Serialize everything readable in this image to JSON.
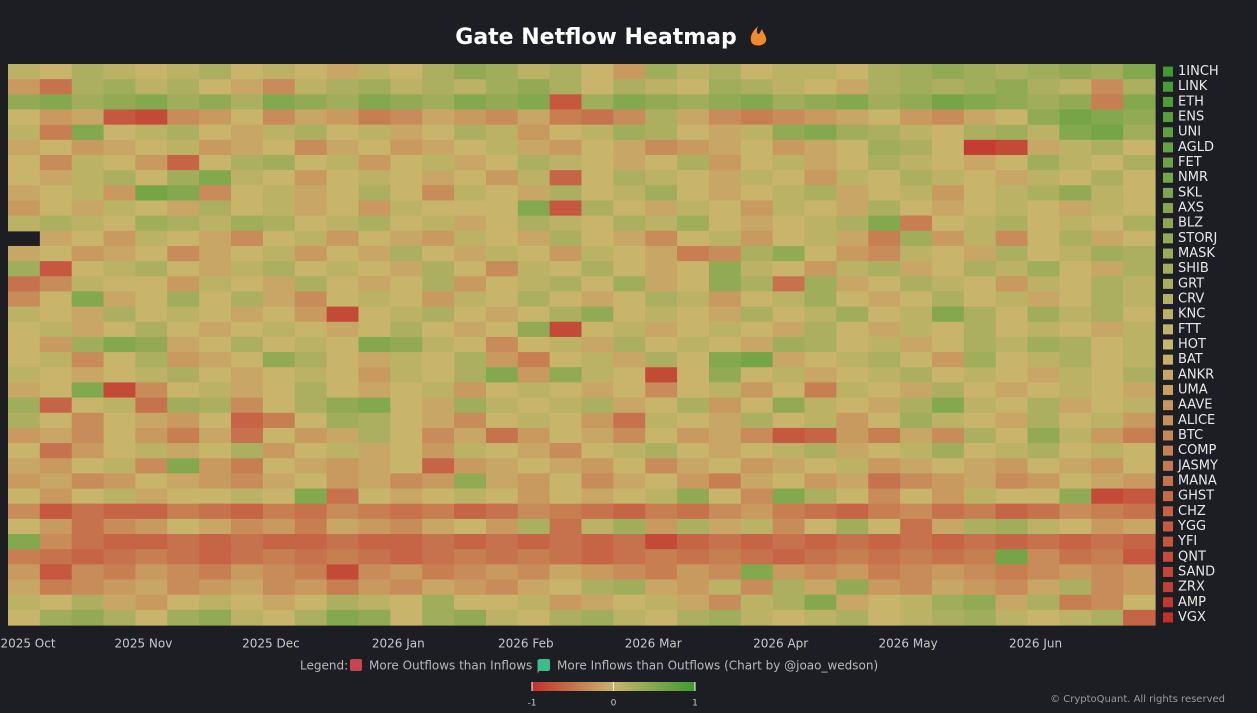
{
  "chart_data": {
    "type": "heatmap",
    "title": "Gate Netflow Heatmap",
    "categories": [
      "2025 Oct",
      null,
      null,
      null,
      "2025 Nov",
      null,
      null,
      null,
      "2025 Dec",
      null,
      null,
      null,
      "2026 Jan",
      null,
      null,
      null,
      "2026 Feb",
      null,
      null,
      null,
      "2026 Mar",
      null,
      null,
      null,
      "2026 Apr",
      null,
      null,
      null,
      "2026 May",
      null,
      null,
      null,
      "2026 Jun",
      null,
      null,
      null
    ],
    "rows": [
      "1INCH",
      "LINK",
      "ETH",
      "ENS",
      "UNI",
      "AGLD",
      "FET",
      "NMR",
      "SKL",
      "AXS",
      "BLZ",
      "STORJ",
      "MASK",
      "SHIB",
      "GRT",
      "CRV",
      "KNC",
      "FTT",
      "HOT",
      "BAT",
      "ANKR",
      "UMA",
      "AAVE",
      "ALICE",
      "BTC",
      "COMP",
      "JASMY",
      "MANA",
      "GHST",
      "CHZ",
      "YGG",
      "YFI",
      "QNT",
      "SAND",
      "ZRX",
      "AMP",
      "VGX"
    ],
    "values": [
      [
        0.1,
        0,
        0.2,
        0.1,
        0,
        0.1,
        0.2,
        0,
        0.1,
        0,
        -0.1,
        0.1,
        0,
        0.2,
        0.4,
        0.3,
        0.1,
        0.2,
        0,
        -0.2,
        0.3,
        0.1,
        0.2,
        0,
        0.1,
        0.1,
        0,
        0.2,
        0.3,
        0.4,
        0.3,
        0.2,
        0.3,
        0.4,
        0.3,
        0.5
      ],
      [
        -0.2,
        -0.5,
        0.2,
        0.3,
        0.1,
        0.2,
        0,
        -0.1,
        -0.3,
        0.1,
        0.2,
        0.3,
        0.1,
        0.2,
        0.1,
        0.3,
        0.4,
        0.2,
        0,
        0.2,
        0.1,
        0,
        0.3,
        0.2,
        0.1,
        0,
        -0.1,
        0.2,
        0.3,
        0.2,
        0.3,
        0.4,
        0.2,
        0.1,
        -0.3,
        0.2
      ],
      [
        0.4,
        0.5,
        0.3,
        0.4,
        0.5,
        0.3,
        0.4,
        0.2,
        0.5,
        0.4,
        0.3,
        0.5,
        0.4,
        0.3,
        0.5,
        0.4,
        0.5,
        -0.7,
        0.3,
        0.5,
        0.4,
        0.3,
        0.4,
        0.5,
        0.3,
        0.4,
        0.5,
        0.3,
        0.4,
        0.6,
        0.5,
        0.4,
        0.3,
        0.4,
        -0.4,
        0.5
      ],
      [
        0,
        -0.2,
        -0.1,
        -0.7,
        -0.8,
        -0.3,
        -0.2,
        0,
        -0.3,
        -0.1,
        -0.2,
        -0.4,
        -0.3,
        -0.1,
        -0.2,
        -0.3,
        -0.1,
        -0.4,
        -0.5,
        -0.3,
        0.2,
        -0.1,
        -0.3,
        -0.4,
        -0.3,
        -0.2,
        -0.1,
        0,
        -0.2,
        -0.3,
        -0.1,
        0,
        0.4,
        0.6,
        0.5,
        0.4
      ],
      [
        0.1,
        -0.4,
        0.5,
        0,
        0.1,
        0.2,
        0,
        -0.1,
        0.1,
        0.2,
        0,
        0.1,
        -0.1,
        0,
        0.2,
        0.1,
        -0.2,
        0,
        0.1,
        0.3,
        0.2,
        0,
        -0.1,
        0.1,
        0.4,
        0.5,
        0.3,
        0.2,
        0.1,
        0,
        0.2,
        0.3,
        0.1,
        0.5,
        0.6,
        0.3
      ],
      [
        -0.1,
        0,
        -0.2,
        -0.1,
        0,
        0.1,
        -0.2,
        -0.1,
        0,
        -0.3,
        -0.1,
        0,
        -0.2,
        -0.1,
        0,
        0.1,
        -0.1,
        -0.2,
        0,
        -0.1,
        -0.3,
        -0.2,
        -0.1,
        0,
        -0.2,
        -0.1,
        0,
        0.3,
        0.2,
        0,
        -0.9,
        -0.8,
        -0.1,
        0.1,
        0.2,
        0
      ],
      [
        0,
        -0.3,
        0.1,
        0,
        -0.2,
        -0.6,
        0,
        0.2,
        0.3,
        0,
        0.1,
        -0.2,
        0,
        0.1,
        -0.1,
        0,
        0.2,
        0.1,
        0,
        -0.1,
        0,
        0.2,
        -0.2,
        0,
        0.1,
        -0.1,
        0,
        0.2,
        0.1,
        0,
        -0.1,
        0,
        0.3,
        0.1,
        0,
        0.2
      ],
      [
        0,
        -0.1,
        0.1,
        0.2,
        0,
        0.3,
        0.5,
        0.1,
        0,
        -0.2,
        0,
        0.1,
        0,
        -0.1,
        0,
        -0.2,
        0.1,
        -0.6,
        0,
        0.2,
        0.1,
        0,
        -0.1,
        0.1,
        0,
        -0.2,
        0.1,
        0,
        0.2,
        0.1,
        0,
        -0.1,
        0.1,
        0,
        0.2,
        0
      ],
      [
        -0.1,
        0,
        0.1,
        -0.2,
        0.6,
        0.5,
        -0.3,
        0,
        0.1,
        -0.1,
        0,
        0.2,
        0,
        -0.3,
        0.1,
        0,
        -0.1,
        0.2,
        0,
        0.1,
        0.3,
        0,
        -0.1,
        0,
        0.1,
        0.2,
        -0.1,
        0,
        0.1,
        -0.2,
        0,
        0.1,
        0.2,
        0.4,
        0.1,
        0
      ],
      [
        -0.2,
        0,
        -0.1,
        0.1,
        0,
        -0.1,
        0.2,
        0,
        0.1,
        -0.1,
        0,
        -0.2,
        0.1,
        0,
        0,
        0,
        0.5,
        -0.7,
        0.2,
        0,
        -0.1,
        0.1,
        0,
        -0.2,
        0.1,
        0,
        -0.1,
        0.2,
        0,
        -0.1,
        0,
        0.1,
        0,
        -0.1,
        0.1,
        0
      ],
      [
        0.1,
        0.2,
        0.1,
        0,
        0.3,
        0.2,
        0.1,
        0.3,
        0.2,
        0,
        0.1,
        0.2,
        0,
        0.1,
        -0.1,
        0,
        0.2,
        0.1,
        0,
        0.2,
        0.1,
        0.3,
        0,
        -0.1,
        0,
        0.1,
        0.2,
        0.5,
        -0.4,
        0,
        0.1,
        0.2,
        0,
        0.1,
        0,
        0.2
      ],
      [
        null,
        -0.1,
        0,
        -0.2,
        0.1,
        0,
        -0.1,
        -0.3,
        0,
        0.1,
        -0.2,
        0,
        -0.1,
        -0.2,
        0.1,
        0,
        -0.1,
        0.2,
        0,
        -0.1,
        -0.3,
        0,
        0.1,
        -0.2,
        0,
        0.1,
        -0.1,
        -0.4,
        0.3,
        -0.2,
        0.1,
        -0.3,
        0,
        0.2,
        -0.1,
        0
      ],
      [
        -0.1,
        0,
        -0.2,
        -0.1,
        0,
        -0.3,
        -0.1,
        0,
        0.1,
        -0.2,
        0,
        -0.1,
        0.2,
        0,
        -0.1,
        0.1,
        0,
        -0.2,
        0.1,
        0,
        -0.1,
        -0.4,
        -0.3,
        0.2,
        0.4,
        0,
        -0.2,
        -0.3,
        0.1,
        0,
        -0.1,
        0.2,
        0,
        0.1,
        0.3,
        0.2
      ],
      [
        0.3,
        -0.7,
        0,
        0.1,
        0.2,
        0,
        -0.1,
        0.1,
        0.2,
        0,
        0.1,
        0,
        -0.1,
        0.2,
        0,
        -0.3,
        0.1,
        0,
        0.2,
        0,
        -0.1,
        0,
        0.4,
        0.1,
        0,
        -0.2,
        0.1,
        0.2,
        -0.1,
        0,
        0.2,
        0.1,
        0.3,
        0,
        -0.1,
        0.2
      ],
      [
        -0.5,
        -0.3,
        0.1,
        0,
        0,
        -0.2,
        0.1,
        0,
        -0.1,
        0.2,
        0,
        -0.1,
        0,
        0.2,
        -0.2,
        0,
        0.1,
        0.2,
        0,
        0.3,
        -0.1,
        0,
        0.4,
        0.2,
        -0.5,
        0.3,
        -0.1,
        0,
        0.2,
        0.1,
        0,
        -0.2,
        0.1,
        0,
        0.2,
        0.1
      ],
      [
        -0.3,
        0,
        0.5,
        -0.1,
        0,
        0.3,
        0,
        0.2,
        -0.1,
        -0.3,
        0,
        0.1,
        0,
        -0.2,
        0.1,
        0,
        0.2,
        0,
        -0.1,
        0,
        0.2,
        0.1,
        -0.2,
        0,
        0.1,
        0.3,
        0,
        -0.1,
        0,
        0.2,
        0,
        0.1,
        -0.1,
        0,
        0.2,
        0.1
      ],
      [
        0.1,
        0,
        -0.1,
        0.2,
        0,
        0.1,
        0,
        -0.1,
        0,
        -0.2,
        -0.8,
        0,
        0.1,
        0.2,
        0,
        -0.1,
        0,
        0.2,
        0.4,
        0,
        0.1,
        0,
        -0.1,
        0.2,
        0,
        0.1,
        0.3,
        0,
        0.1,
        0.5,
        0.2,
        0,
        0.3,
        0.1,
        0.2,
        0
      ],
      [
        0,
        0.1,
        -0.1,
        0,
        0.2,
        0,
        -0.1,
        0,
        0.1,
        0,
        -0.1,
        0,
        0.2,
        0,
        -0.1,
        0,
        0.4,
        -0.8,
        0,
        0.1,
        -0.1,
        0,
        0.1,
        0,
        -0.1,
        0.2,
        0,
        -0.1,
        0.1,
        0,
        0.2,
        0,
        0.1,
        0,
        -0.1,
        0.1
      ],
      [
        0,
        -0.2,
        0.3,
        0.5,
        0.4,
        -0.1,
        0,
        0.2,
        0,
        0.1,
        0,
        0.5,
        0.4,
        0.1,
        0,
        -0.3,
        0,
        0.1,
        -0.1,
        0.2,
        0,
        0.1,
        0,
        -0.1,
        0.3,
        0.2,
        0,
        0.1,
        -0.1,
        0,
        0.2,
        0.1,
        0.3,
        0.2,
        0,
        0.1
      ],
      [
        0,
        0.1,
        -0.3,
        0,
        0.2,
        -0.2,
        -0.1,
        0,
        0.4,
        0.2,
        0,
        -0.1,
        0.1,
        0,
        0.2,
        -0.2,
        -0.4,
        0,
        0.1,
        -0.1,
        0.2,
        0,
        0.5,
        0.6,
        -0.1,
        0,
        0.1,
        0.2,
        0,
        -0.2,
        0.3,
        0,
        0.1,
        0.2,
        0,
        0.1
      ],
      [
        0.1,
        0,
        -0.1,
        0,
        0.1,
        0.2,
        0,
        -0.1,
        0,
        0.1,
        0,
        -0.2,
        0.1,
        0,
        0.2,
        0.5,
        -0.2,
        0.4,
        0.1,
        0,
        -0.8,
        0,
        0.4,
        0,
        0.1,
        -0.1,
        0,
        0.1,
        0.2,
        0,
        0.1,
        0,
        -0.1,
        0.1,
        0,
        0.2
      ],
      [
        -0.1,
        0,
        0.5,
        -0.8,
        -0.3,
        0,
        0.1,
        -0.1,
        0,
        0.2,
        0,
        -0.1,
        0,
        0.1,
        -0.2,
        0,
        0.1,
        0,
        -0.1,
        0,
        -0.3,
        0,
        0.1,
        -0.2,
        0,
        -0.4,
        0.1,
        0,
        -0.1,
        0.2,
        0,
        -0.1,
        0,
        0.1,
        0,
        -0.1
      ],
      [
        0.3,
        -0.6,
        0,
        0.1,
        -0.5,
        0.3,
        0.2,
        -0.3,
        0,
        0.2,
        0.4,
        0.5,
        0,
        -0.1,
        0.3,
        0.1,
        0,
        0.1,
        0.2,
        -0.1,
        0,
        0.2,
        -0.2,
        0,
        0.4,
        0.1,
        0,
        -0.1,
        0.2,
        0.5,
        0.1,
        0,
        0.2,
        -0.1,
        0,
        0.1
      ],
      [
        0.2,
        0,
        -0.3,
        0,
        -0.1,
        -0.2,
        0,
        -0.6,
        -0.4,
        0,
        0.3,
        0.2,
        0,
        -0.1,
        -0.3,
        0,
        0.1,
        0,
        -0.2,
        -0.5,
        0.1,
        0,
        -0.1,
        0.2,
        0,
        0.1,
        -0.2,
        0,
        0.3,
        0.1,
        0,
        -0.1,
        0.2,
        0,
        0.1,
        -0.2
      ],
      [
        -0.2,
        -0.1,
        -0.3,
        0,
        -0.2,
        -0.4,
        -0.1,
        -0.5,
        0,
        -0.2,
        -0.1,
        0.2,
        0,
        -0.3,
        -0.1,
        -0.5,
        -0.2,
        0,
        -0.1,
        -0.3,
        0,
        -0.2,
        -0.1,
        -0.3,
        -0.7,
        -0.6,
        -0.2,
        -0.4,
        -0.1,
        -0.3,
        0.2,
        0,
        0.4,
        0.1,
        -0.2,
        -0.4
      ],
      [
        0,
        -0.5,
        -0.2,
        0,
        0.1,
        -0.1,
        0,
        0.2,
        -0.2,
        0,
        0.1,
        -0.1,
        0,
        -0.2,
        0.1,
        0,
        -0.1,
        -0.3,
        0,
        0.1,
        0.2,
        0,
        -0.1,
        0,
        0.1,
        0.2,
        -0.1,
        0,
        0.1,
        0.3,
        0,
        0.1,
        0.2,
        0,
        0.1,
        0
      ],
      [
        -0.1,
        -0.2,
        0,
        0.1,
        -0.3,
        0.5,
        -0.2,
        -0.4,
        0,
        -0.1,
        -0.2,
        -0.1,
        0,
        -0.6,
        -0.2,
        -0.1,
        0,
        -0.1,
        -0.2,
        0,
        -0.3,
        -0.1,
        0,
        -0.2,
        -0.1,
        0,
        0.1,
        -0.2,
        -0.1,
        0,
        -0.1,
        -0.2,
        0,
        -0.1,
        -0.2,
        0
      ],
      [
        -0.2,
        -0.1,
        -0.3,
        -0.2,
        0,
        -0.1,
        -0.2,
        -0.3,
        -0.1,
        0,
        -0.2,
        -0.1,
        -0.3,
        -0.2,
        0.4,
        -0.1,
        -0.2,
        0,
        -0.3,
        -0.1,
        0,
        -0.2,
        -0.4,
        -0.1,
        0,
        -0.2,
        -0.1,
        -0.5,
        -0.3,
        -0.2,
        -0.1,
        -0.3,
        -0.2,
        0,
        -0.1,
        -0.2
      ],
      [
        0,
        -0.2,
        0,
        0.1,
        -0.1,
        0,
        0,
        0.1,
        0,
        0.5,
        -0.5,
        0,
        -0.1,
        0,
        0.1,
        0,
        -0.2,
        0,
        -0.1,
        0,
        0.1,
        0.4,
        0,
        -0.3,
        0.5,
        0.2,
        0,
        -0.3,
        0,
        -0.2,
        0.1,
        0,
        0,
        0.4,
        -0.8,
        -0.7
      ],
      [
        -0.3,
        -0.7,
        -0.5,
        -0.6,
        -0.6,
        -0.4,
        -0.5,
        -0.6,
        -0.4,
        -0.5,
        -0.3,
        -0.4,
        -0.5,
        -0.4,
        -0.6,
        -0.5,
        -0.3,
        -0.4,
        -0.5,
        -0.6,
        -0.4,
        -0.5,
        -0.3,
        -0.2,
        -0.4,
        -0.5,
        -0.6,
        -0.4,
        -0.3,
        -0.5,
        -0.4,
        -0.6,
        -0.5,
        -0.3,
        -0.4,
        -0.5
      ],
      [
        0,
        -0.2,
        -0.5,
        -0.3,
        -0.2,
        0,
        -0.1,
        -0.3,
        -0.2,
        -0.4,
        -0.1,
        -0.2,
        -0.3,
        -0.1,
        0,
        -0.2,
        0.2,
        -0.5,
        0.1,
        0.3,
        -0.2,
        0.2,
        -0.1,
        0.1,
        -0.3,
        0,
        0.3,
        0,
        -0.5,
        -0.1,
        0.2,
        0.3,
        0.1,
        0,
        -0.2,
        -0.1
      ],
      [
        0.5,
        -0.3,
        -0.5,
        -0.6,
        -0.6,
        -0.5,
        -0.6,
        -0.5,
        -0.6,
        -0.6,
        -0.5,
        -0.6,
        -0.6,
        -0.5,
        -0.6,
        -0.5,
        -0.6,
        -0.5,
        -0.6,
        -0.5,
        -0.8,
        -0.6,
        -0.5,
        -0.6,
        -0.5,
        -0.6,
        -0.5,
        -0.6,
        -0.5,
        -0.6,
        -0.5,
        -0.6,
        -0.5,
        -0.6,
        -0.5,
        -0.6
      ],
      [
        -0.4,
        -0.5,
        -0.6,
        -0.5,
        -0.4,
        -0.5,
        -0.6,
        -0.5,
        -0.4,
        -0.5,
        -0.4,
        -0.5,
        -0.6,
        -0.5,
        -0.4,
        -0.5,
        -0.4,
        -0.5,
        -0.6,
        -0.5,
        -0.4,
        -0.5,
        -0.4,
        -0.5,
        -0.6,
        -0.5,
        -0.4,
        -0.5,
        -0.4,
        -0.5,
        -0.4,
        0.6,
        -0.3,
        -0.5,
        -0.4,
        -0.7
      ],
      [
        -0.2,
        -0.7,
        -0.3,
        -0.4,
        -0.2,
        -0.3,
        -0.4,
        -0.2,
        -0.3,
        -0.4,
        -0.8,
        -0.3,
        -0.2,
        -0.4,
        -0.3,
        -0.2,
        -0.3,
        -0.1,
        -0.2,
        -0.3,
        -0.4,
        -0.2,
        -0.3,
        0.5,
        -0.2,
        -0.3,
        -0.2,
        -0.4,
        -0.3,
        -0.2,
        -0.3,
        -0.4,
        -0.3,
        -0.2,
        -0.3,
        -0.2
      ],
      [
        -0.1,
        -0.4,
        -0.3,
        -0.2,
        -0.1,
        -0.3,
        -0.2,
        -0.1,
        -0.3,
        -0.2,
        -0.4,
        -0.2,
        -0.3,
        -0.1,
        -0.2,
        -0.3,
        -0.1,
        0,
        0.2,
        0.3,
        -0.1,
        -0.2,
        0.1,
        -0.3,
        0.2,
        -0.1,
        0.4,
        -0.2,
        -0.3,
        -0.1,
        -0.2,
        -0.3,
        -0.1,
        0.2,
        -0.3,
        -0.2
      ],
      [
        0.1,
        0,
        0.2,
        -0.1,
        -0.2,
        0,
        0.1,
        0,
        -0.1,
        0,
        0.2,
        0.1,
        0,
        0.3,
        0,
        0,
        0.1,
        -0.2,
        -0.1,
        0,
        0.1,
        -0.1,
        -0.3,
        0.1,
        0.2,
        0.5,
        -0.1,
        0,
        0.1,
        0.3,
        0.4,
        -0.1,
        0.2,
        -0.4,
        -0.3,
        0
      ],
      [
        0,
        0.3,
        0.4,
        0.2,
        0,
        0.3,
        0.4,
        0.1,
        0,
        0.2,
        0.5,
        0.4,
        0,
        0.3,
        0.4,
        0.1,
        0,
        0.2,
        0.3,
        0.1,
        0,
        0.2,
        0.3,
        0.1,
        0,
        0.1,
        0.2,
        0,
        0.1,
        0.2,
        0.3,
        0.1,
        0,
        0.1,
        0.2,
        -0.6
      ]
    ],
    "colorlim": [
      -1,
      1
    ],
    "colorticks": [
      -1,
      0,
      1
    ],
    "colors": {
      "negative": "#c3302b",
      "neutral": "#c9b46c",
      "positive": "#3f9b30"
    },
    "legend": {
      "title": "Legend:",
      "negative": "More Outflows than Inflows |",
      "positive": "More Inflows than Outflows (Chart by @joao_wedson)"
    },
    "credit": "© CryptoQuant. All rights reserved"
  }
}
